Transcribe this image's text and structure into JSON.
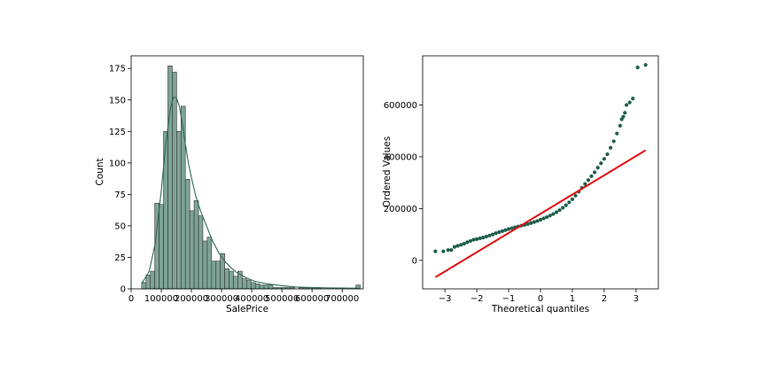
{
  "chart_data": [
    {
      "type": "bar",
      "xlabel": "SalePrice",
      "ylabel": "Count",
      "xlim": [
        0,
        770000
      ],
      "ylim": [
        0,
        185
      ],
      "xticks": [
        0,
        100000,
        200000,
        300000,
        400000,
        500000,
        600000,
        700000
      ],
      "yticks": [
        0,
        25,
        50,
        75,
        100,
        125,
        150,
        175
      ],
      "bin_width": 14500,
      "bins_start": [
        34900,
        49400,
        63900,
        78400,
        92900,
        107400,
        121900,
        136400,
        150900,
        165400,
        179900,
        194400,
        208900,
        223400,
        237900,
        252400,
        266900,
        281400,
        295900,
        310400,
        324900,
        339400,
        353900,
        368400,
        382900,
        397400,
        411900,
        426400,
        440900,
        455400,
        469900,
        484400,
        498900,
        513400,
        527900,
        542400,
        556900,
        571400,
        585900,
        600400,
        614900,
        629400,
        643900,
        658400,
        672900,
        687400,
        701900,
        716400,
        730900,
        745400
      ],
      "values": [
        5,
        11,
        14,
        68,
        67,
        125,
        177,
        172,
        125,
        145,
        87,
        62,
        70,
        58,
        38,
        41,
        22,
        22,
        28,
        16,
        14,
        10,
        14,
        8,
        7,
        5,
        4,
        3,
        3,
        3,
        1,
        1,
        1,
        1,
        1,
        0,
        1,
        1,
        1,
        1,
        1,
        0,
        0,
        0,
        0,
        0,
        0,
        0,
        0,
        3
      ],
      "kde": {
        "x": [
          34900,
          60000,
          80000,
          100000,
          115000,
          130000,
          140000,
          150000,
          160000,
          170000,
          180000,
          190000,
          200000,
          215000,
          230000,
          250000,
          270000,
          290000,
          310000,
          330000,
          350000,
          380000,
          410000,
          450000,
          500000,
          550000,
          600000,
          650000,
          700000,
          755000
        ],
        "y": [
          4,
          14,
          36,
          78,
          115,
          143,
          152,
          152,
          145,
          131,
          115,
          100,
          88,
          73,
          62,
          50,
          38,
          29,
          22,
          17,
          13,
          9,
          6,
          4,
          2.5,
          1.5,
          1,
          0.8,
          0.6,
          0.5
        ]
      }
    },
    {
      "type": "scatter",
      "xlabel": "Theoretical quantiles",
      "ylabel": "Ordered Values",
      "xlim": [
        -3.7,
        3.7
      ],
      "ylim": [
        -110000,
        790000
      ],
      "xticks": [
        -3,
        -2,
        -1,
        0,
        1,
        2,
        3
      ],
      "yticks": [
        0,
        200000,
        400000,
        600000
      ],
      "ytick_labels": [
        "0",
        "200000",
        "400000",
        "600000"
      ],
      "points": {
        "x": [
          -3.3,
          -3.05,
          -2.9,
          -2.8,
          -2.7,
          -2.6,
          -2.5,
          -2.4,
          -2.3,
          -2.2,
          -2.1,
          -2.0,
          -1.9,
          -1.8,
          -1.7,
          -1.6,
          -1.5,
          -1.4,
          -1.3,
          -1.2,
          -1.1,
          -1.0,
          -0.9,
          -0.8,
          -0.7,
          -0.6,
          -0.5,
          -0.4,
          -0.3,
          -0.2,
          -0.1,
          0.0,
          0.1,
          0.2,
          0.3,
          0.4,
          0.5,
          0.6,
          0.7,
          0.8,
          0.9,
          1.0,
          1.1,
          1.2,
          1.3,
          1.4,
          1.5,
          1.6,
          1.7,
          1.8,
          1.9,
          2.0,
          2.1,
          2.2,
          2.3,
          2.4,
          2.5,
          2.55,
          2.6,
          2.65,
          2.7,
          2.8,
          2.9,
          3.05,
          3.3
        ],
        "y": [
          35000,
          35000,
          40000,
          40000,
          52000,
          56000,
          60000,
          64000,
          70000,
          75000,
          80000,
          82000,
          85000,
          88000,
          92000,
          96000,
          100000,
          105000,
          109000,
          113000,
          117000,
          121000,
          124000,
          128000,
          131000,
          134000,
          137000,
          140000,
          144000,
          148000,
          152000,
          157000,
          162000,
          167000,
          173000,
          179000,
          186000,
          194000,
          203000,
          213000,
          224000,
          236000,
          250000,
          265000,
          280000,
          295000,
          310000,
          325000,
          340000,
          358000,
          375000,
          392000,
          410000,
          435000,
          460000,
          490000,
          520000,
          545000,
          555000,
          570000,
          600000,
          610000,
          625000,
          745000,
          755000
        ]
      },
      "fit_line": {
        "x": [
          -3.3,
          3.3
        ],
        "y": [
          -65000,
          425000
        ]
      }
    }
  ]
}
